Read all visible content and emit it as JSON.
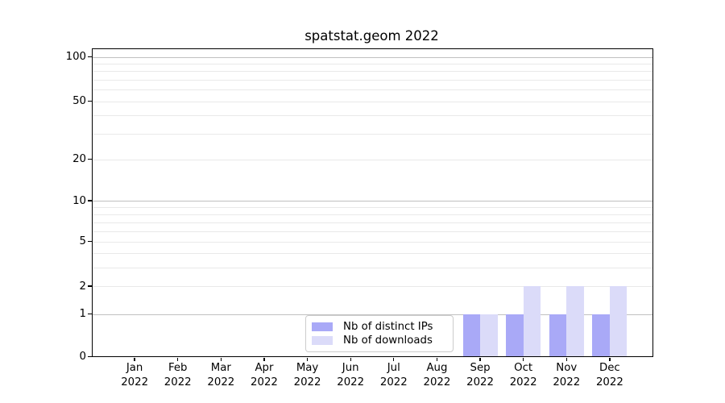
{
  "chart_data": {
    "type": "bar",
    "title": "spatstat.geom 2022",
    "categories": [
      "Jan 2022",
      "Feb 2022",
      "Mar 2022",
      "Apr 2022",
      "May 2022",
      "Jun 2022",
      "Jul 2022",
      "Aug 2022",
      "Sep 2022",
      "Oct 2022",
      "Nov 2022",
      "Dec 2022"
    ],
    "series": [
      {
        "name": "Nb of distinct IPs",
        "color": "#a9a9f7",
        "values": [
          0,
          0,
          0,
          0,
          0,
          0,
          0,
          0,
          1,
          1,
          1,
          1
        ]
      },
      {
        "name": "Nb of downloads",
        "color": "#dbdbf9",
        "values": [
          0,
          0,
          0,
          0,
          0,
          0,
          0,
          0,
          1,
          2,
          2,
          2
        ]
      }
    ],
    "xlabel": "",
    "ylabel": "",
    "yscale": "log1p",
    "ylim": [
      0,
      114
    ],
    "yticks": [
      0,
      1,
      2,
      5,
      10,
      20,
      50,
      100
    ],
    "minor_yticks": [
      3,
      4,
      6,
      7,
      8,
      9,
      30,
      40,
      60,
      70,
      80,
      90
    ],
    "grid": "horizontal",
    "legend_position": "lower-center"
  },
  "colors": {
    "major_gridline": "#c0c0c0",
    "minor_gridline": "#e9e9e9",
    "axis": "#000000",
    "legend_border": "#cccccc",
    "background": "#ffffff"
  }
}
